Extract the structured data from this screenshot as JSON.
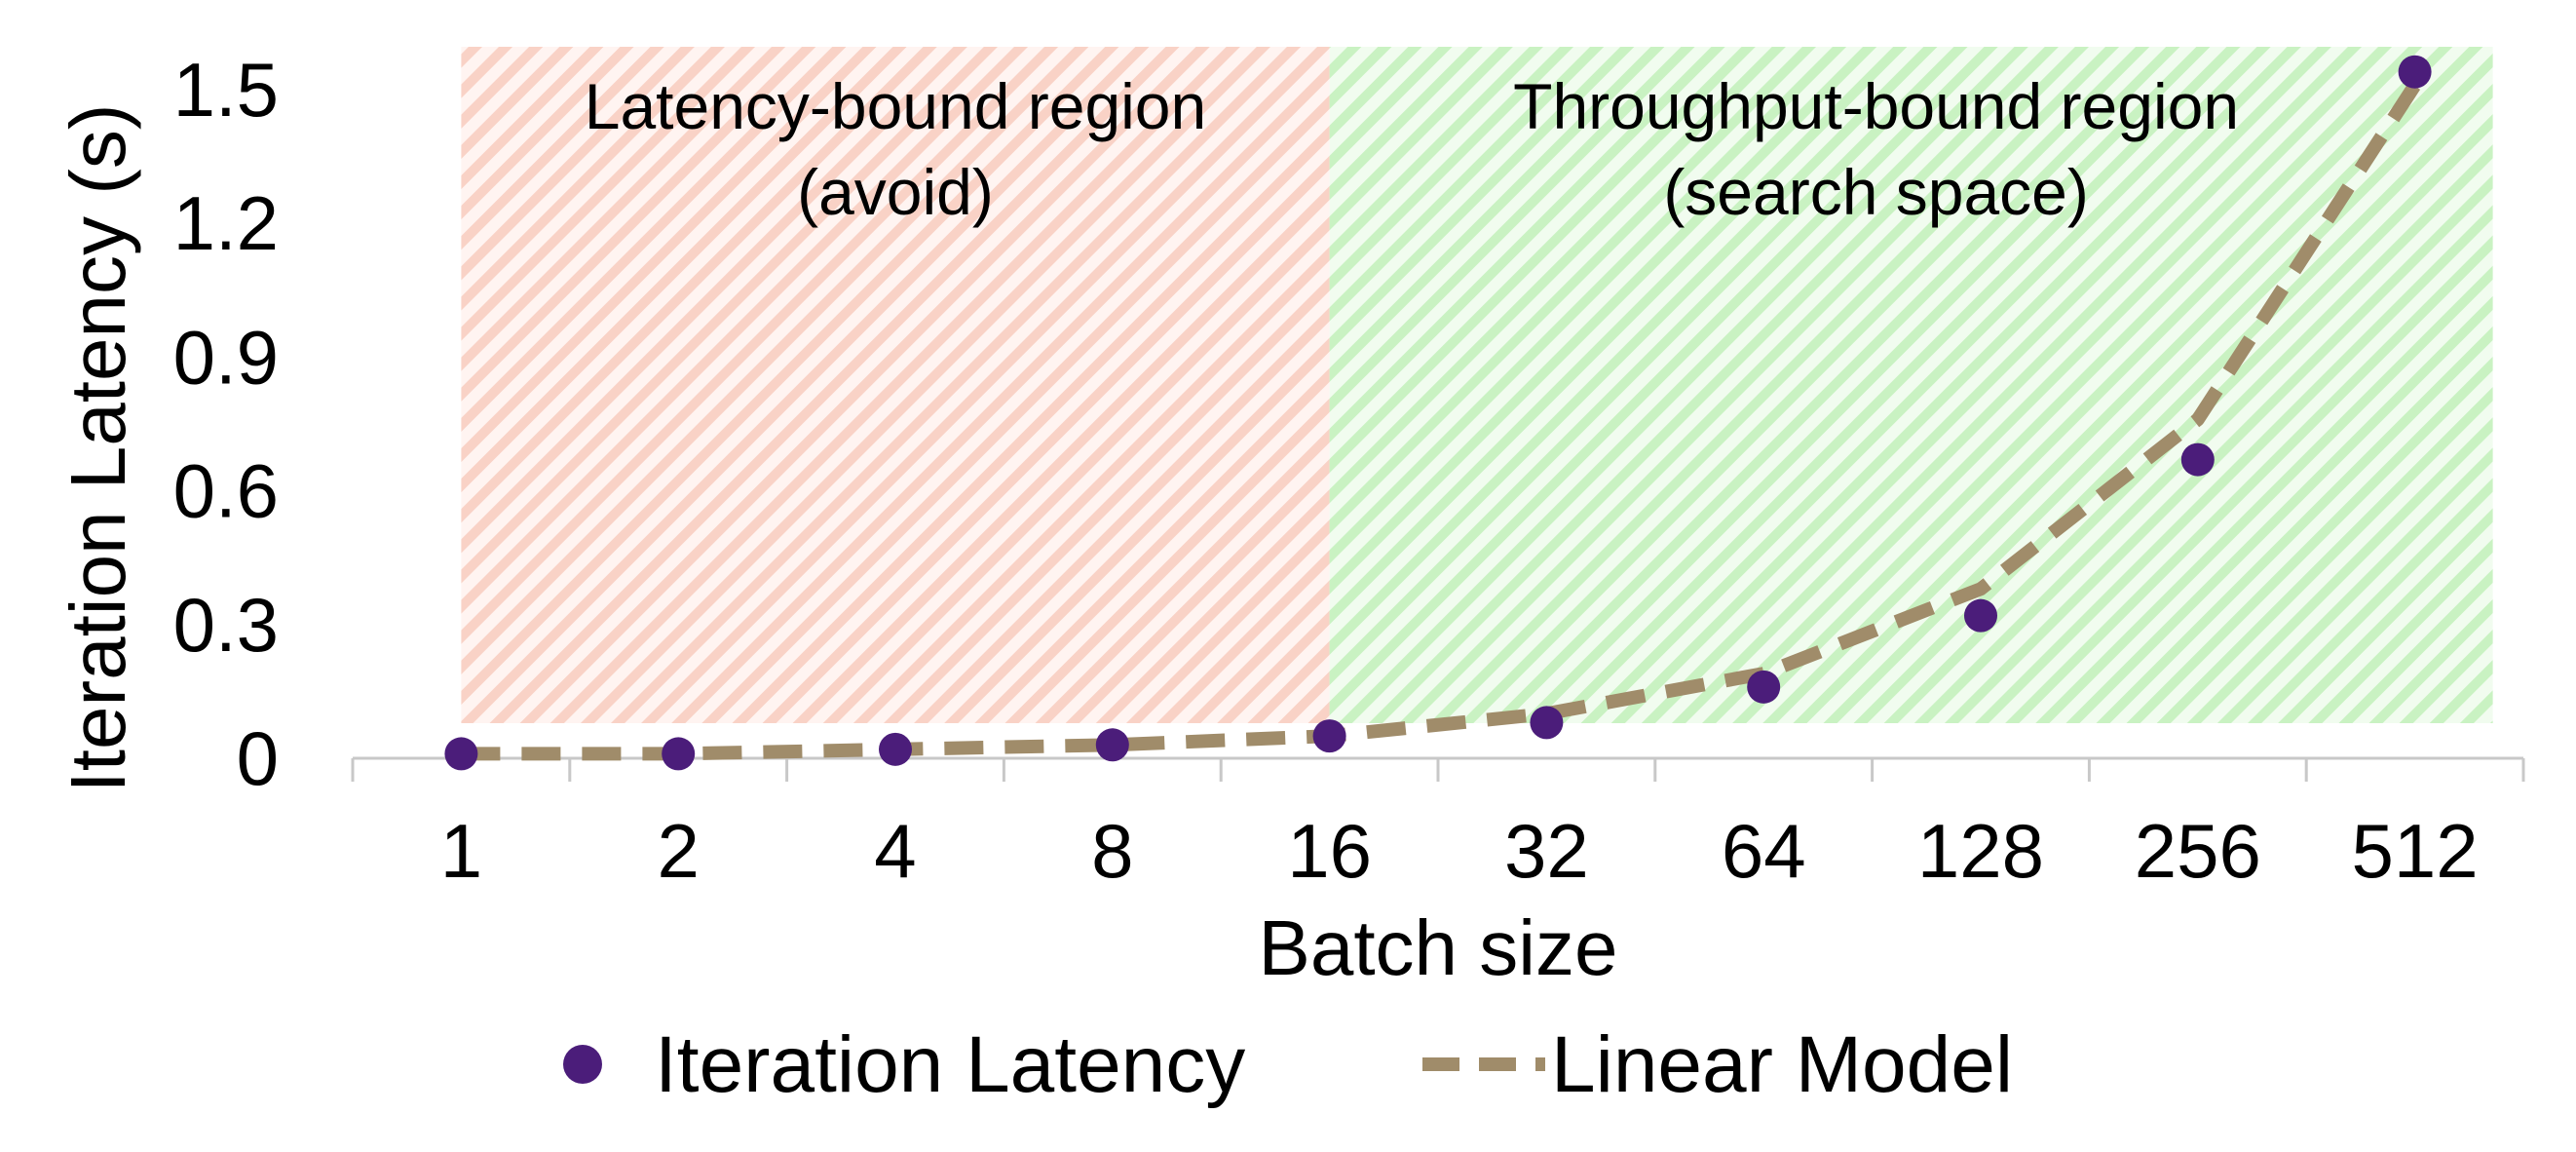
{
  "chart_data": {
    "type": "scatter",
    "xlabel": "Batch size",
    "ylabel": "Iteration Latency (s)",
    "x_scale": "log2",
    "categories": [
      "1",
      "2",
      "4",
      "8",
      "16",
      "32",
      "64",
      "128",
      "256",
      "512"
    ],
    "ylim": [
      0,
      1.5
    ],
    "yticks": [
      "0",
      "0.3",
      "0.6",
      "0.9",
      "1.2",
      "1.5"
    ],
    "ytick_values": [
      0,
      0.3,
      0.6,
      0.9,
      1.2,
      1.5
    ],
    "series": [
      {
        "name": "Iteration Latency",
        "kind": "scatter",
        "color": "#4b1d7a",
        "values": [
          0.01,
          0.01,
          0.02,
          0.03,
          0.05,
          0.08,
          0.16,
          0.32,
          0.67,
          1.54
        ]
      },
      {
        "name": "Linear Model",
        "kind": "dashed-line",
        "color": "#a08c6a",
        "values": [
          0.01,
          0.01,
          0.02,
          0.03,
          0.05,
          0.1,
          0.19,
          0.38,
          0.76,
          1.51
        ]
      }
    ],
    "regions": [
      {
        "label_line1": "Latency-bound region",
        "label_line2": "(avoid)",
        "from": "1",
        "to": "16",
        "color": "#f7c7b8"
      },
      {
        "label_line1": "Throughput-bound region",
        "label_line2": "(search space)",
        "from": "16",
        "to": "512",
        "color": "#bff0b8"
      }
    ],
    "legend_position": "bottom-center",
    "grid": false
  }
}
